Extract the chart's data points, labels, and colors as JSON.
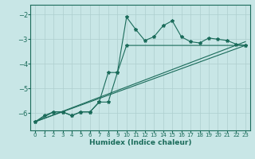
{
  "background_color": "#c8e6e6",
  "grid_color": "#aecfcf",
  "line_color": "#1a6b5a",
  "xlabel": "Humidex (Indice chaleur)",
  "xlim": [
    -0.5,
    23.5
  ],
  "ylim": [
    -6.7,
    -1.6
  ],
  "yticks": [
    -6,
    -5,
    -4,
    -3,
    -2
  ],
  "xticks": [
    0,
    1,
    2,
    3,
    4,
    5,
    6,
    7,
    8,
    9,
    10,
    11,
    12,
    13,
    14,
    15,
    16,
    17,
    18,
    19,
    20,
    21,
    22,
    23
  ],
  "line1_x": [
    0,
    1,
    2,
    3,
    4,
    5,
    6,
    7,
    8,
    9,
    10,
    11,
    12,
    13,
    14,
    15,
    16,
    17,
    18,
    19,
    20,
    21,
    22,
    23
  ],
  "line1_y": [
    -6.35,
    -6.1,
    -5.95,
    -5.95,
    -6.1,
    -5.95,
    -5.95,
    -5.55,
    -5.55,
    -4.35,
    -2.1,
    -2.6,
    -3.05,
    -2.9,
    -2.45,
    -2.25,
    -2.9,
    -3.1,
    -3.15,
    -2.95,
    -3.0,
    -3.05,
    -3.2,
    -3.25
  ],
  "line2_x": [
    0,
    2,
    3,
    4,
    5,
    6,
    7,
    8,
    9,
    10,
    23
  ],
  "line2_y": [
    -6.35,
    -5.95,
    -5.95,
    -6.1,
    -5.95,
    -5.95,
    -5.55,
    -4.35,
    -4.35,
    -3.25,
    -3.25
  ],
  "line3_x": [
    0,
    23
  ],
  "line3_y": [
    -6.35,
    -3.1
  ],
  "line4_x": [
    0,
    23
  ],
  "line4_y": [
    -6.35,
    -3.25
  ]
}
